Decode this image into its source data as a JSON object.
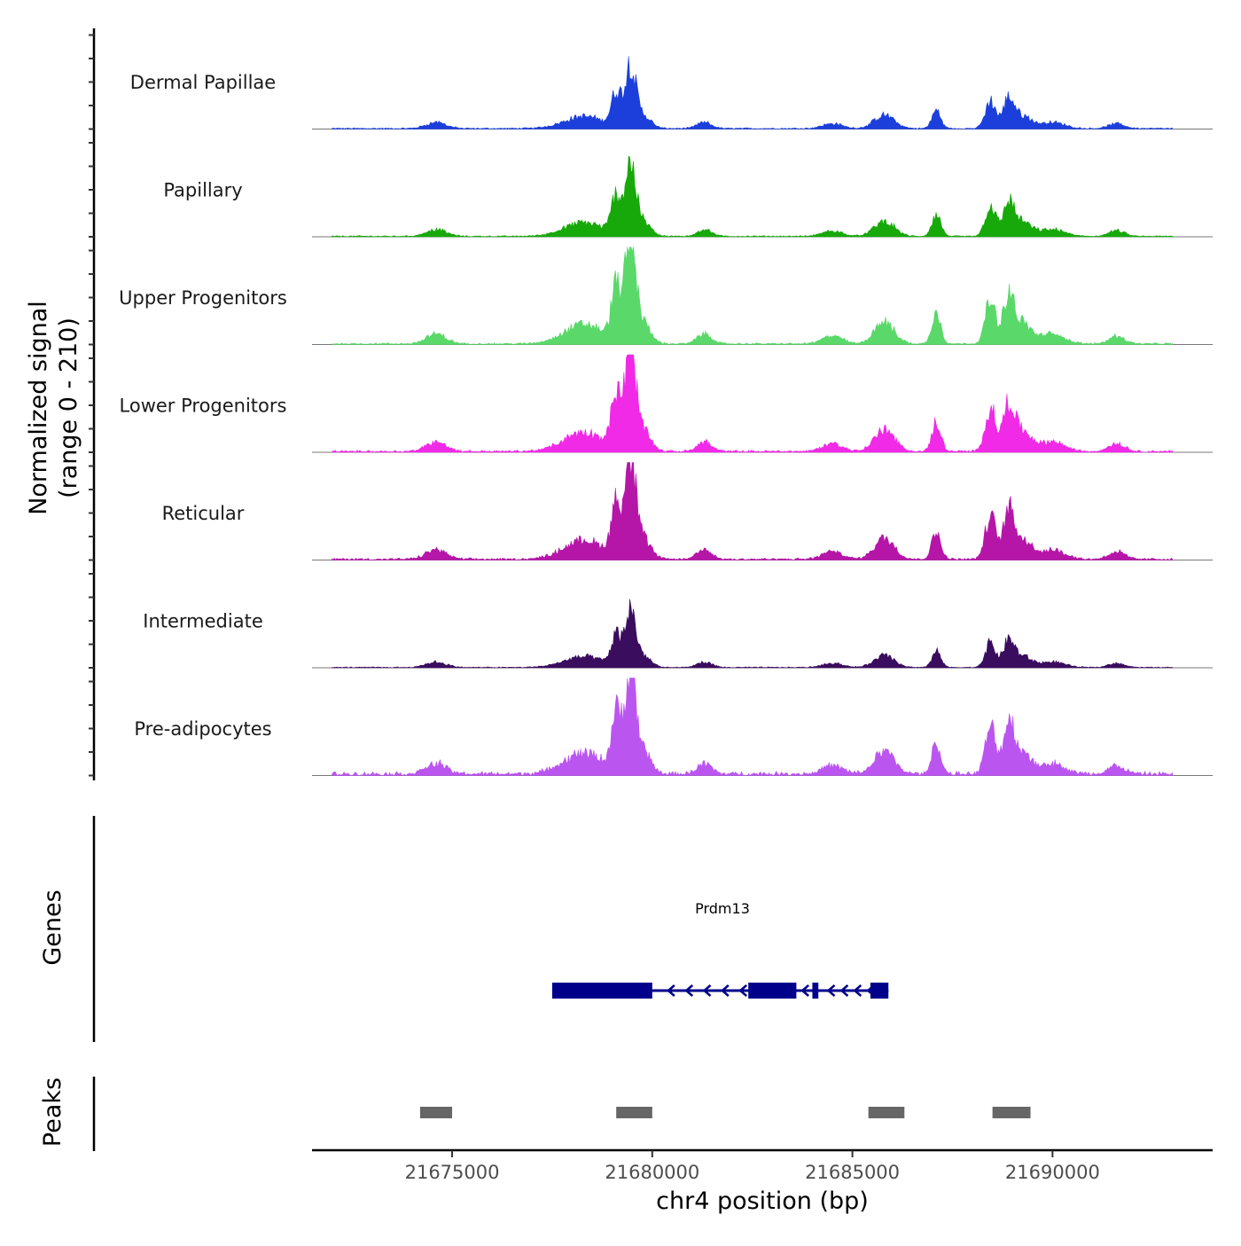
{
  "chart_data": {
    "type": "coverage-track",
    "y_axis_title_line1": "Normalized signal",
    "y_axis_title_line2": "(range 0 - 210)",
    "y_range": [
      0,
      210
    ],
    "x_axis_title": "chr4 position (bp)",
    "x_range": [
      21671500,
      21694000
    ],
    "x_ticks": [
      21675000,
      21680000,
      21685000,
      21690000
    ],
    "x_tick_labels": [
      "21675000",
      "21680000",
      "21685000",
      "21690000"
    ],
    "genes_track_title": "Genes",
    "peaks_track_title": "Peaks",
    "tracks": [
      {
        "name": "Dermal Papillae",
        "color": "#1c3fdc",
        "peak_scale": 0.62,
        "noise": 0.55
      },
      {
        "name": "Papillary",
        "color": "#17a80a",
        "peak_scale": 0.7,
        "noise": 0.45
      },
      {
        "name": "Upper Progenitors",
        "color": "#5ad86a",
        "peak_scale": 1.0,
        "noise": 0.45
      },
      {
        "name": "Lower Progenitors",
        "color": "#f02ae6",
        "peak_scale": 1.0,
        "noise": 0.55
      },
      {
        "name": "Reticular",
        "color": "#b516a8",
        "peak_scale": 0.98,
        "noise": 0.55
      },
      {
        "name": "Intermediate",
        "color": "#3a0d5e",
        "peak_scale": 0.55,
        "noise": 0.45
      },
      {
        "name": "Pre-adipocytes",
        "color": "#bb55f0",
        "peak_scale": 1.05,
        "noise": 1.0
      }
    ],
    "signal_peaks": [
      {
        "pos": 21674600,
        "width": 250,
        "height": 0.1
      },
      {
        "pos": 21678300,
        "width": 500,
        "height": 0.2
      },
      {
        "pos": 21679100,
        "width": 120,
        "height": 0.55
      },
      {
        "pos": 21679450,
        "width": 130,
        "height": 1.0
      },
      {
        "pos": 21679750,
        "width": 200,
        "height": 0.22
      },
      {
        "pos": 21681300,
        "width": 180,
        "height": 0.1
      },
      {
        "pos": 21684500,
        "width": 250,
        "height": 0.08
      },
      {
        "pos": 21685800,
        "width": 250,
        "height": 0.22
      },
      {
        "pos": 21687100,
        "width": 110,
        "height": 0.3
      },
      {
        "pos": 21688450,
        "width": 130,
        "height": 0.45
      },
      {
        "pos": 21688900,
        "width": 130,
        "height": 0.42
      },
      {
        "pos": 21689200,
        "width": 250,
        "height": 0.22
      },
      {
        "pos": 21690000,
        "width": 300,
        "height": 0.1
      },
      {
        "pos": 21691600,
        "width": 200,
        "height": 0.08
      }
    ],
    "gene": {
      "name": "Prdm13",
      "color": "#00008b",
      "strand": "-",
      "start": 21677500,
      "end": 21685900,
      "exons": [
        [
          21677500,
          21680000
        ],
        [
          21682400,
          21683600
        ],
        [
          21684000,
          21684150
        ],
        [
          21685450,
          21685900
        ]
      ]
    },
    "peaks": [
      {
        "start": 21674200,
        "end": 21675000
      },
      {
        "start": 21679100,
        "end": 21680000
      },
      {
        "start": 21685400,
        "end": 21686300
      },
      {
        "start": 21688500,
        "end": 21689450
      }
    ],
    "peak_color": "#666666"
  }
}
